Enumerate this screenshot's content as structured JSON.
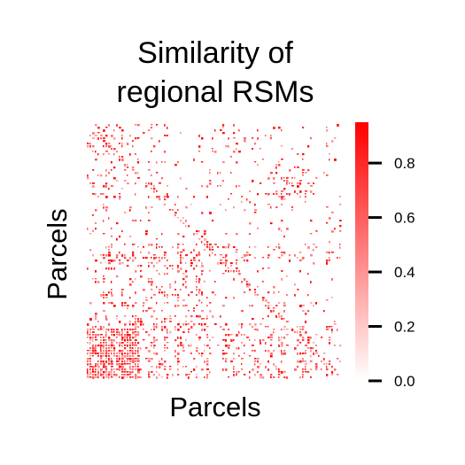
{
  "chart_data": {
    "type": "heatmap",
    "title": [
      "Similarity of",
      "regional RSMs"
    ],
    "xlabel": "Parcels",
    "ylabel": "Parcels",
    "colorbar": {
      "vmin": 0.0,
      "vmax": 0.95,
      "ticks": [
        0.0,
        0.2,
        0.4,
        0.6,
        0.8
      ],
      "tick_labels": [
        "0.0",
        "0.2",
        "0.4",
        "0.6",
        "0.8"
      ],
      "color_low": "#ffffff",
      "color_high": "#ff0000"
    },
    "x_tick_labels": [],
    "y_tick_labels": [],
    "matrix_description_note": "",
    "grid": false
  }
}
